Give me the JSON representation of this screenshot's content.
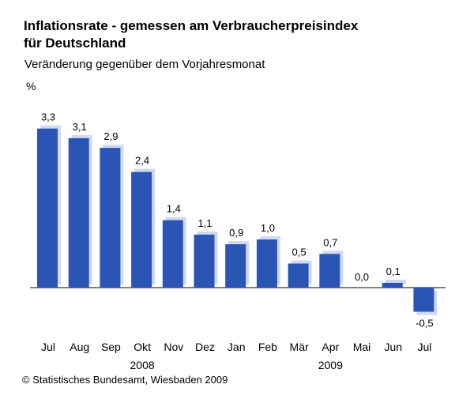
{
  "title_line1": "Inflationsrate - gemessen am Verbraucherpreisindex",
  "title_line2": "für Deutschland",
  "subtitle": "Veränderung gegenüber dem Vorjahresmonat",
  "unit": "%",
  "source": "© Statistisches Bundesamt, Wiesbaden 2009",
  "colors": {
    "bar": "#2b55b5",
    "shadow": "#cfd9f2"
  },
  "chart_data": {
    "type": "bar",
    "categories": [
      "Jul",
      "Aug",
      "Sep",
      "Okt",
      "Nov",
      "Dez",
      "Jan",
      "Feb",
      "Mär",
      "Apr",
      "Mai",
      "Jun",
      "Jul"
    ],
    "values": [
      3.3,
      3.1,
      2.9,
      2.4,
      1.4,
      1.1,
      0.9,
      1.0,
      0.5,
      0.7,
      0.0,
      0.1,
      -0.5
    ],
    "value_labels": [
      "3,3",
      "3,1",
      "2,9",
      "2,4",
      "1,4",
      "1,1",
      "0,9",
      "1,0",
      "0,5",
      "0,7",
      "0,0",
      "0,1",
      "-0,5"
    ],
    "year_labels": [
      {
        "index": 3,
        "text": "2008"
      },
      {
        "index": 9,
        "text": "2009"
      }
    ],
    "ylabel": "%",
    "grid": false
  }
}
